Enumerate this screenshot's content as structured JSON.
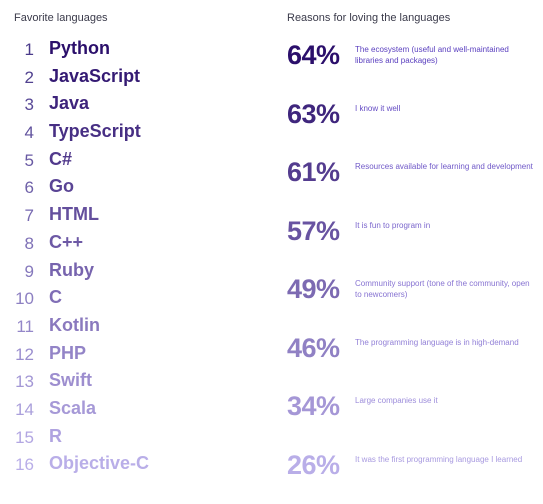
{
  "chart_data": [
    {
      "type": "table",
      "title": "Favorite languages",
      "categories": [
        "Python",
        "JavaScript",
        "Java",
        "TypeScript",
        "C#",
        "Go",
        "HTML",
        "C++",
        "Ruby",
        "C",
        "Kotlin",
        "PHP",
        "Swift",
        "Scala",
        "R",
        "Objective-C"
      ],
      "ranks": [
        "1",
        "2",
        "3",
        "4",
        "5",
        "6",
        "7",
        "8",
        "9",
        "10",
        "11",
        "12",
        "13",
        "14",
        "15",
        "16"
      ]
    },
    {
      "type": "bar",
      "title": "Reasons for loving the languages",
      "categories": [
        "The ecosystem (useful and well-maintained libraries and packages)",
        "I know it well",
        "Resources available for learning and development",
        "It is fun to program in",
        "Community support (tone of the community, open to newcomers)",
        "The programming language is in high-demand",
        "Large companies use it",
        "It was the first programming language I learned"
      ],
      "values": [
        64,
        63,
        61,
        57,
        49,
        46,
        34,
        26
      ],
      "labels": [
        "64%",
        "63%",
        "61%",
        "57%",
        "49%",
        "46%",
        "34%",
        "26%"
      ]
    }
  ],
  "colors": {
    "darkest": "#2b0f6b",
    "lightest": "#b9aee8",
    "rank_dark": "#4a3a8a",
    "text_dark": "#5a3fbf",
    "text_light": "#a89ae0"
  }
}
